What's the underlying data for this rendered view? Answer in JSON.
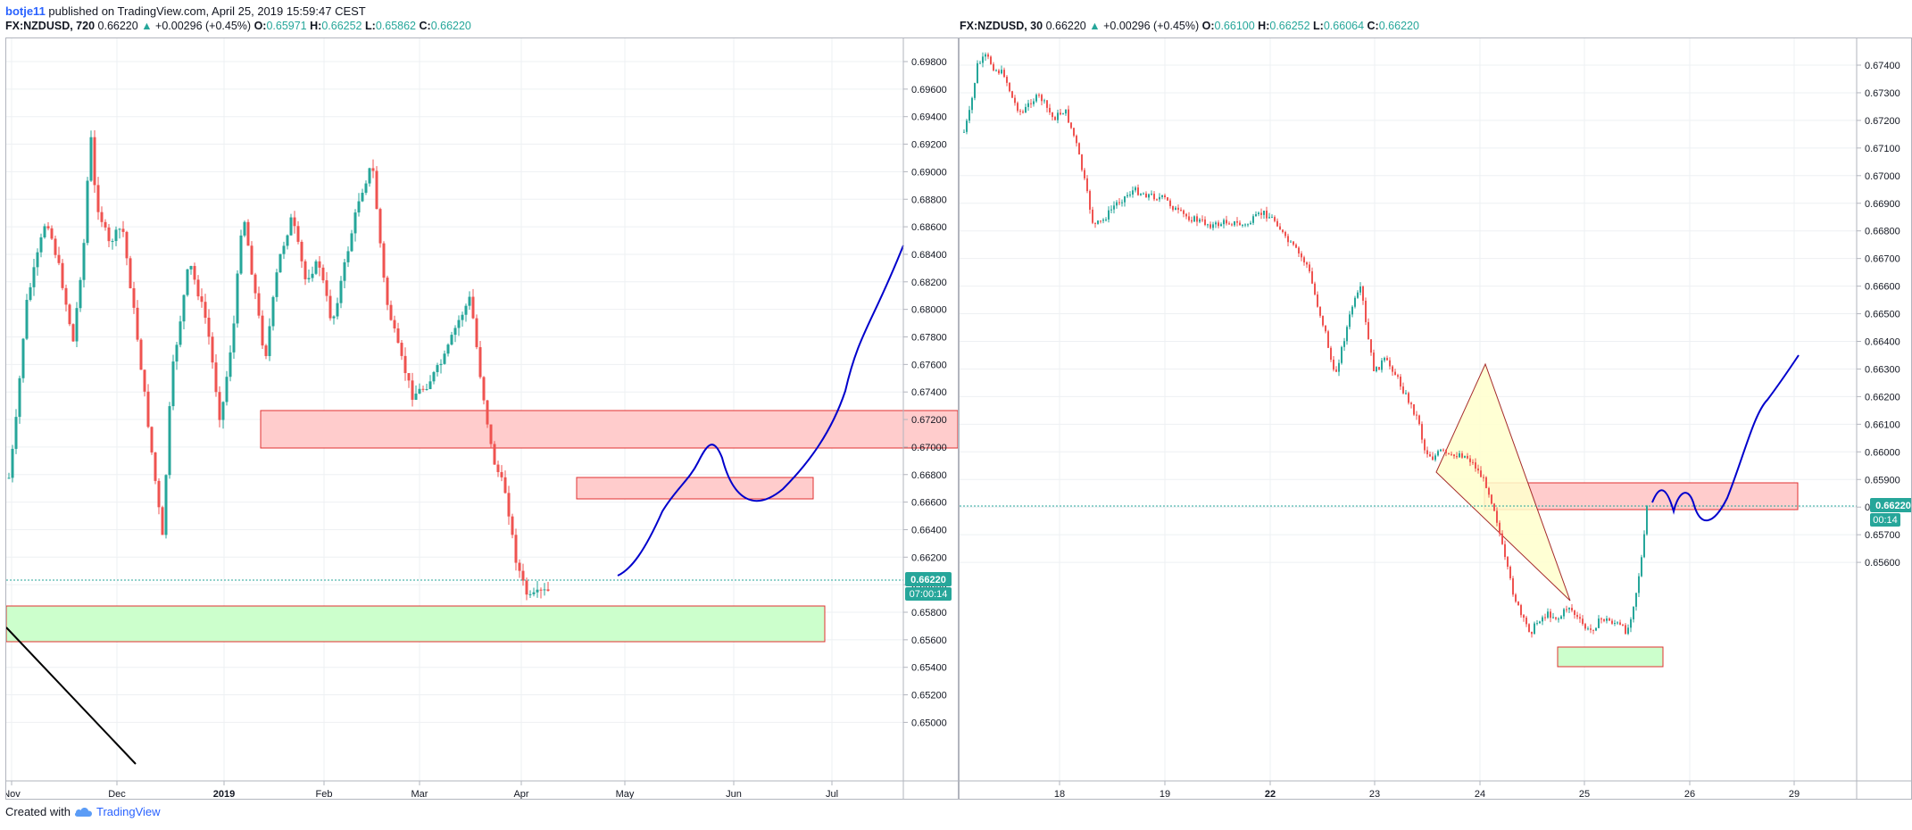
{
  "top_bar": {
    "username": "botje11",
    "published_text": "published on TradingView.com, April 25, 2019 15:59:47 CEST"
  },
  "left_chart": {
    "symbol": "FX:NZDUSD, 720",
    "last": "0.66220",
    "change": "+0.00296 (+0.45%)",
    "o_label": "O:",
    "open": "0.65971",
    "h_label": "H:",
    "high": "0.66252",
    "l_label": "L:",
    "low": "0.65862",
    "c_label": "C:",
    "close": "0.66220",
    "price_tag": "0.66220",
    "countdown": "07:00:14",
    "y_ticks": [
      "0.69800",
      "0.69600",
      "0.69400",
      "0.69200",
      "0.69000",
      "0.68800",
      "0.68600",
      "0.68400",
      "0.68200",
      "0.68000",
      "0.67800",
      "0.67600",
      "0.67400",
      "0.67200",
      "0.67000",
      "0.66800",
      "0.66600",
      "0.66400",
      "0.66200",
      "0.66000",
      "0.65800",
      "0.65600",
      "0.65400",
      "0.65200",
      "0.65000"
    ],
    "x_ticks": [
      "Nov",
      "Dec",
      "2019",
      "Feb",
      "Mar",
      "Apr",
      "May",
      "Jun",
      "Jul"
    ]
  },
  "right_chart": {
    "symbol": "FX:NZDUSD, 30",
    "last": "0.66220",
    "change": "+0.00296 (+0.45%)",
    "o_label": "O:",
    "open": "0.66100",
    "h_label": "H:",
    "high": "0.66252",
    "l_label": "L:",
    "low": "0.66064",
    "c_label": "C:",
    "close": "0.66220",
    "price_tag": "0.66220",
    "countdown": "00:14",
    "y_ticks": [
      "0.67400",
      "0.67300",
      "0.67200",
      "0.67100",
      "0.67000",
      "0.66900",
      "0.66800",
      "0.66700",
      "0.66600",
      "0.66500",
      "0.66400",
      "0.66300",
      "0.66200",
      "0.66100",
      "0.66000",
      "0.65900",
      "0.65800",
      "0.65700",
      "0.65600"
    ],
    "x_ticks": [
      "18",
      "19",
      "22",
      "23",
      "24",
      "25",
      "26",
      "29"
    ]
  },
  "colors": {
    "up": "#26a69a",
    "down": "#ef5350",
    "resistance_zone": "#ffcccc",
    "support_zone": "#ccffcc",
    "projection": "#0000cc",
    "triangle": "#ffffcc"
  },
  "footer": {
    "created_with": "Created with",
    "brand": "TradingView",
    "logo_icon": "tradingview-cloud-icon"
  }
}
